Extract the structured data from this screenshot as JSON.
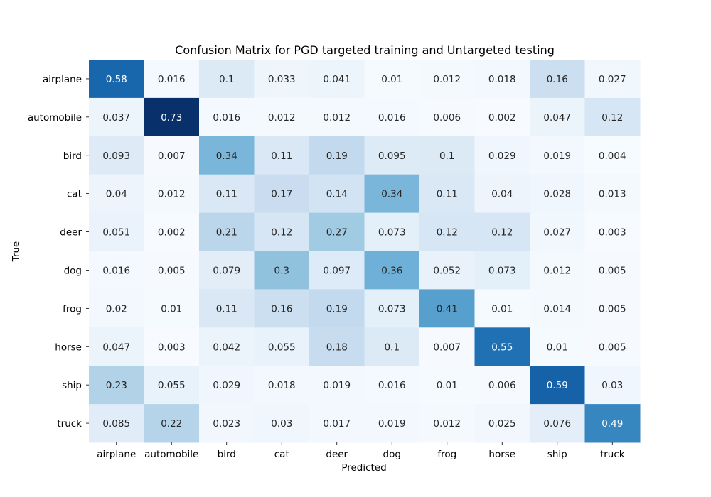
{
  "chart_data": {
    "type": "heatmap",
    "title": "Confusion Matrix for PGD targeted training and Untargeted testing",
    "xlabel": "Predicted",
    "ylabel": "True",
    "x_categories": [
      "airplane",
      "automobile",
      "bird",
      "cat",
      "deer",
      "dog",
      "frog",
      "horse",
      "ship",
      "truck"
    ],
    "y_categories": [
      "airplane",
      "automobile",
      "bird",
      "cat",
      "deer",
      "dog",
      "frog",
      "horse",
      "ship",
      "truck"
    ],
    "values": [
      [
        0.58,
        0.016,
        0.1,
        0.033,
        0.041,
        0.01,
        0.012,
        0.018,
        0.16,
        0.027
      ],
      [
        0.037,
        0.73,
        0.016,
        0.012,
        0.012,
        0.016,
        0.006,
        0.002,
        0.047,
        0.12
      ],
      [
        0.093,
        0.007,
        0.34,
        0.11,
        0.19,
        0.095,
        0.1,
        0.029,
        0.019,
        0.004
      ],
      [
        0.04,
        0.012,
        0.11,
        0.17,
        0.14,
        0.34,
        0.11,
        0.04,
        0.028,
        0.013
      ],
      [
        0.051,
        0.002,
        0.21,
        0.12,
        0.27,
        0.073,
        0.12,
        0.12,
        0.027,
        0.003
      ],
      [
        0.016,
        0.005,
        0.079,
        0.3,
        0.097,
        0.36,
        0.052,
        0.073,
        0.012,
        0.005
      ],
      [
        0.02,
        0.01,
        0.11,
        0.16,
        0.19,
        0.073,
        0.41,
        0.01,
        0.014,
        0.005
      ],
      [
        0.047,
        0.003,
        0.042,
        0.055,
        0.18,
        0.1,
        0.007,
        0.55,
        0.01,
        0.005
      ],
      [
        0.23,
        0.055,
        0.029,
        0.018,
        0.019,
        0.016,
        0.01,
        0.006,
        0.59,
        0.03
      ],
      [
        0.085,
        0.22,
        0.023,
        0.03,
        0.017,
        0.019,
        0.012,
        0.025,
        0.076,
        0.49
      ]
    ],
    "colormap": "Blues",
    "value_range": [
      0.002,
      0.73
    ],
    "colorbar": false,
    "grid": false
  }
}
